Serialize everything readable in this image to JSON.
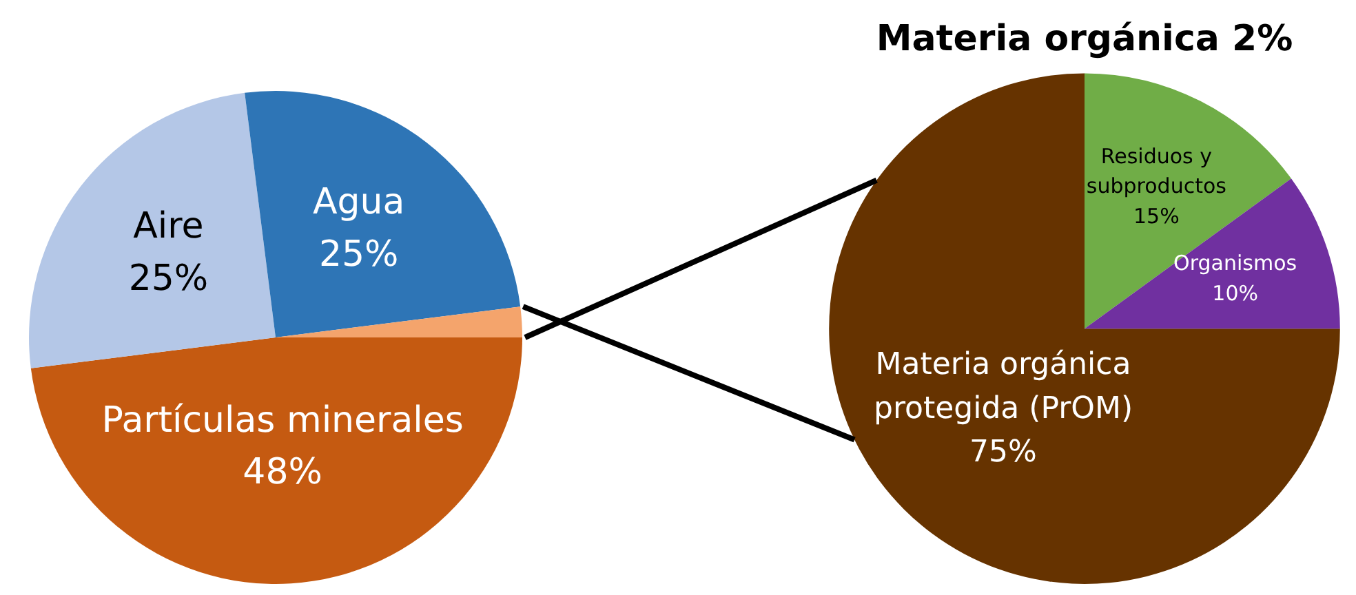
{
  "chart_data": [
    {
      "type": "pie",
      "categories": [
        "Partículas minerales",
        "Aire",
        "Agua",
        null
      ],
      "values": [
        48,
        25,
        25,
        2
      ],
      "value_labels": [
        "48%",
        "25%",
        "25%",
        null
      ],
      "colors": [
        "#c55a11",
        "#b4c7e7",
        "#2e75b6",
        "#f4a46c"
      ]
    },
    {
      "type": "pie",
      "title": "Materia orgánica 2%",
      "categories": [
        "Materia orgánica protegida (PrOM)",
        "Residuos y subproductos",
        "Organismos"
      ],
      "values": [
        75,
        15,
        10
      ],
      "value_labels": [
        "75%",
        "15%",
        "10%"
      ],
      "colors": [
        "#663300",
        "#70ad47",
        "#7030a0"
      ]
    }
  ]
}
